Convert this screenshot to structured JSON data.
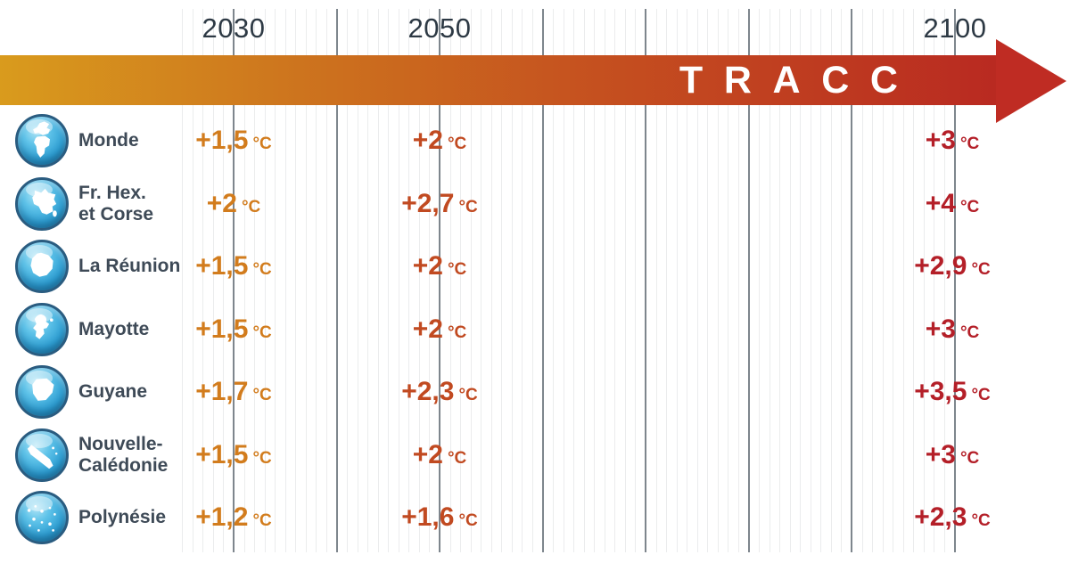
{
  "header": {
    "years": [
      "2030",
      "2050",
      "2100"
    ],
    "arrow_label": "TRACC"
  },
  "unit": "°C",
  "colors": {
    "arrow_gradient_start": "#d99b1d",
    "arrow_gradient_end": "#b92a21",
    "arrow_head": "#bf2c23",
    "value_2030": "#d27c1d",
    "value_2050": "#c14a21",
    "value_2100": "#b41f28",
    "label_text": "#3e4a57",
    "year_text": "#2d3944",
    "globe_blue": "#2f9fd3"
  },
  "rows": [
    {
      "label": "Monde",
      "icon": "globe-world-icon",
      "values": [
        "+1,5",
        "+2",
        "+3"
      ]
    },
    {
      "label": "Fr. Hex.\net Corse",
      "icon": "globe-france-icon",
      "values": [
        "+2",
        "+2,7",
        "+4"
      ]
    },
    {
      "label": "La Réunion",
      "icon": "globe-la-reunion-icon",
      "values": [
        "+1,5",
        "+2",
        "+2,9"
      ]
    },
    {
      "label": "Mayotte",
      "icon": "globe-mayotte-icon",
      "values": [
        "+1,5",
        "+2",
        "+3"
      ]
    },
    {
      "label": "Guyane",
      "icon": "globe-guyane-icon",
      "values": [
        "+1,7",
        "+2,3",
        "+3,5"
      ]
    },
    {
      "label": "Nouvelle-\nCalédonie",
      "icon": "globe-nouvelle-caledonie-icon",
      "values": [
        "+1,5",
        "+2",
        "+3"
      ]
    },
    {
      "label": "Polynésie",
      "icon": "globe-polynesie-icon",
      "values": [
        "+1,2",
        "+1,6",
        "+2,3"
      ]
    }
  ],
  "chart_data": {
    "type": "table",
    "title": "TRACC",
    "categories": [
      "2030",
      "2050",
      "2100"
    ],
    "unit": "°C",
    "series": [
      {
        "name": "Monde",
        "values": [
          1.5,
          2,
          3
        ]
      },
      {
        "name": "Fr. Hex. et Corse",
        "values": [
          2,
          2.7,
          4
        ]
      },
      {
        "name": "La Réunion",
        "values": [
          1.5,
          2,
          2.9
        ]
      },
      {
        "name": "Mayotte",
        "values": [
          1.5,
          2,
          3
        ]
      },
      {
        "name": "Guyane",
        "values": [
          1.7,
          2.3,
          3.5
        ]
      },
      {
        "name": "Nouvelle-Calédonie",
        "values": [
          1.5,
          2,
          3
        ]
      },
      {
        "name": "Polynésie",
        "values": [
          1.2,
          1.6,
          2.3
        ]
      }
    ],
    "x_axis": {
      "start": 2025,
      "end": 2100,
      "minor_tick_years": 1,
      "major_tick_years": 10,
      "labeled_ticks": [
        2030,
        2050,
        2100
      ]
    },
    "legend_position": "none",
    "grid": true
  }
}
